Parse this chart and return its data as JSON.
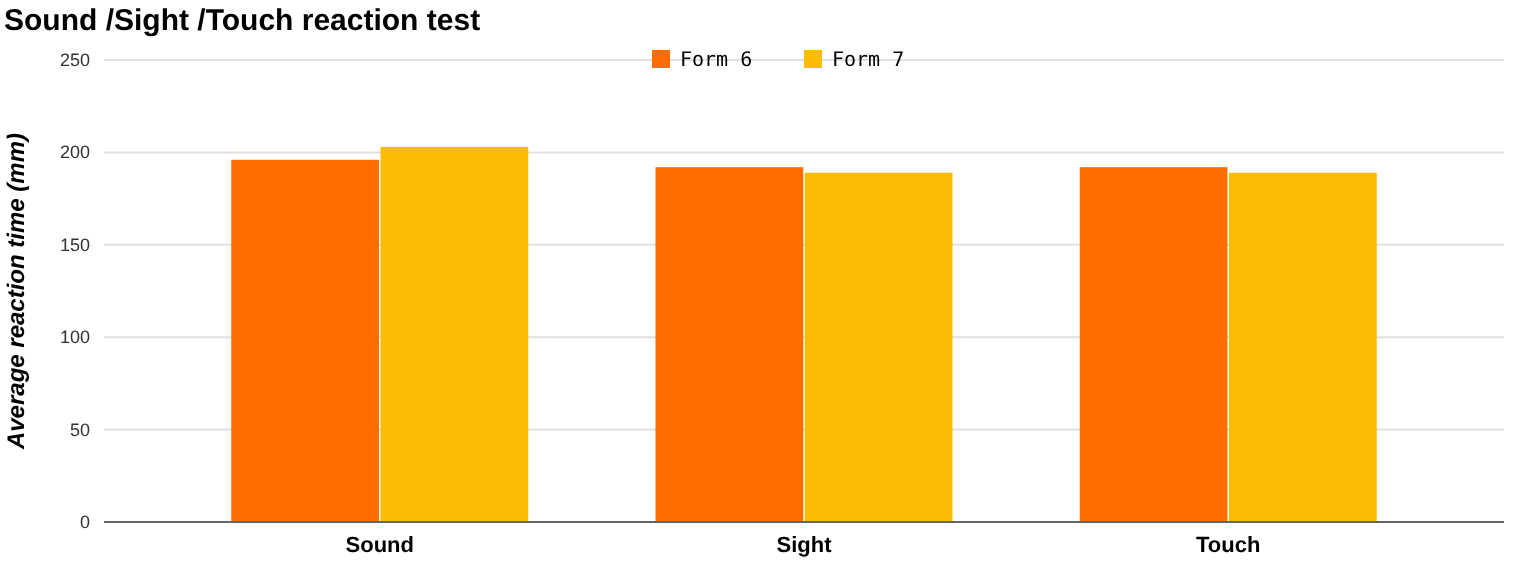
{
  "chart_data": {
    "type": "bar",
    "title": "Sound /Sight /Touch reaction test",
    "ylabel": "Average reaction time (mm)",
    "categories": [
      "Sound",
      "Sight",
      "Touch"
    ],
    "series": [
      {
        "name": "Form 6",
        "color": "#ff6d01",
        "values": [
          196,
          192,
          192
        ]
      },
      {
        "name": "Form 7",
        "color": "#fbbc04",
        "values": [
          203,
          189,
          189
        ]
      }
    ],
    "ylim": [
      0,
      250
    ],
    "yticks": [
      0,
      50,
      100,
      150,
      200,
      250
    ],
    "grid": "y",
    "legend": "top"
  }
}
